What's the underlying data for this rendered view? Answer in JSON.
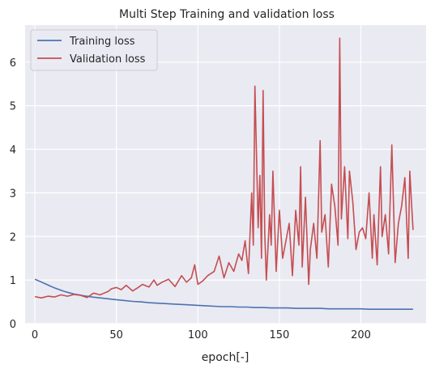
{
  "chart_data": {
    "type": "line",
    "title": "Multi Step Training and validation loss",
    "xlabel": "epoch[-]",
    "ylabel": "",
    "xlim": [
      -6,
      240
    ],
    "ylim": [
      0,
      6.85
    ],
    "xticks": [
      0,
      50,
      100,
      150,
      200
    ],
    "yticks": [
      0,
      1,
      2,
      3,
      4,
      5,
      6
    ],
    "grid": true,
    "legend_position": "top-left",
    "series": [
      {
        "name": "Training loss",
        "color": "#4c72b0",
        "x": [
          0,
          3,
          6,
          9,
          12,
          15,
          18,
          21,
          24,
          27,
          30,
          35,
          40,
          45,
          50,
          55,
          60,
          65,
          70,
          75,
          80,
          85,
          90,
          95,
          100,
          105,
          110,
          115,
          120,
          125,
          130,
          135,
          140,
          145,
          150,
          155,
          160,
          165,
          170,
          175,
          180,
          185,
          190,
          195,
          200,
          205,
          210,
          215,
          220,
          225,
          232
        ],
        "y": [
          1.02,
          0.97,
          0.92,
          0.87,
          0.82,
          0.78,
          0.74,
          0.71,
          0.68,
          0.66,
          0.64,
          0.61,
          0.59,
          0.57,
          0.55,
          0.53,
          0.51,
          0.5,
          0.48,
          0.47,
          0.46,
          0.45,
          0.44,
          0.43,
          0.42,
          0.41,
          0.4,
          0.39,
          0.39,
          0.38,
          0.38,
          0.37,
          0.37,
          0.36,
          0.36,
          0.36,
          0.35,
          0.35,
          0.35,
          0.35,
          0.34,
          0.34,
          0.34,
          0.34,
          0.34,
          0.33,
          0.33,
          0.33,
          0.33,
          0.33,
          0.33
        ]
      },
      {
        "name": "Validation loss",
        "color": "#c44e52",
        "x": [
          0,
          4,
          8,
          12,
          16,
          20,
          24,
          28,
          32,
          36,
          40,
          45,
          47,
          50,
          53,
          56,
          60,
          63,
          66,
          70,
          73,
          75,
          78,
          82,
          86,
          90,
          93,
          96,
          98,
          100,
          103,
          106,
          110,
          113,
          116,
          119,
          122,
          125,
          127,
          129,
          131,
          133,
          134,
          135,
          137,
          138,
          139,
          140,
          141,
          142,
          144,
          145,
          146,
          148,
          150,
          152,
          154,
          156,
          158,
          160,
          162,
          163,
          164,
          166,
          168,
          169,
          171,
          173,
          175,
          176,
          178,
          180,
          182,
          184,
          186,
          187,
          188,
          190,
          192,
          193,
          195,
          197,
          199,
          201,
          203,
          205,
          207,
          208,
          210,
          212,
          213,
          215,
          217,
          219,
          221,
          223,
          225,
          227,
          229,
          230,
          231,
          232
        ],
        "y": [
          0.62,
          0.59,
          0.63,
          0.61,
          0.66,
          0.63,
          0.67,
          0.65,
          0.6,
          0.7,
          0.66,
          0.74,
          0.8,
          0.83,
          0.78,
          0.88,
          0.75,
          0.82,
          0.9,
          0.84,
          1.0,
          0.88,
          0.95,
          1.02,
          0.85,
          1.1,
          0.95,
          1.05,
          1.35,
          0.9,
          0.98,
          1.1,
          1.2,
          1.55,
          1.05,
          1.4,
          1.2,
          1.6,
          1.45,
          1.9,
          1.15,
          3.0,
          1.8,
          5.45,
          2.2,
          3.4,
          1.5,
          5.35,
          2.1,
          1.0,
          2.5,
          1.8,
          3.5,
          1.2,
          2.6,
          1.5,
          1.9,
          2.3,
          1.1,
          2.6,
          1.8,
          3.6,
          1.3,
          2.9,
          0.9,
          1.7,
          2.3,
          1.5,
          4.2,
          2.1,
          2.5,
          1.3,
          3.2,
          2.7,
          1.8,
          6.55,
          2.4,
          3.6,
          1.95,
          3.5,
          2.8,
          1.7,
          2.1,
          2.2,
          1.95,
          3.0,
          1.5,
          2.5,
          1.35,
          3.6,
          2.0,
          2.5,
          1.6,
          4.1,
          1.4,
          2.3,
          2.7,
          3.35,
          1.5,
          3.5,
          2.8,
          2.15
        ]
      }
    ]
  }
}
